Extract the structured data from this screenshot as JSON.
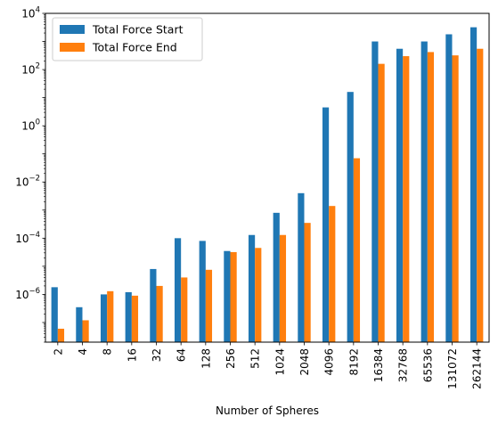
{
  "chart_data": {
    "type": "bar",
    "title": "",
    "xlabel": "Number of Spheres",
    "ylabel": "",
    "yscale": "log",
    "ylim": [
      2e-08,
      10000
    ],
    "grid": false,
    "legend_position": "top-left",
    "categories": [
      "2",
      "4",
      "8",
      "16",
      "32",
      "64",
      "128",
      "256",
      "512",
      "1024",
      "2048",
      "4096",
      "8192",
      "16384",
      "32768",
      "65536",
      "131072",
      "262144"
    ],
    "series": [
      {
        "name": "Total Force Start",
        "color": "#1f77b4",
        "values": [
          1.8e-06,
          3.5e-07,
          1e-06,
          1.2e-06,
          8e-06,
          0.0001,
          8e-05,
          3.5e-05,
          0.00013,
          0.0008,
          0.004,
          4.5,
          16,
          1000,
          550,
          1000,
          1800,
          3200
        ]
      },
      {
        "name": "Total Force End",
        "color": "#ff7f0e",
        "values": [
          6e-08,
          1.2e-07,
          1.3e-06,
          9e-07,
          2e-06,
          4e-06,
          7.5e-06,
          3.2e-05,
          4.5e-05,
          0.00013,
          0.00035,
          0.0014,
          0.07,
          160,
          300,
          420,
          320,
          550
        ]
      }
    ],
    "y_ticks": [
      {
        "exp": -6,
        "label": "10",
        "sup": "−6"
      },
      {
        "exp": -4,
        "label": "10",
        "sup": "−4"
      },
      {
        "exp": -2,
        "label": "10",
        "sup": "−2"
      },
      {
        "exp": 0,
        "label": "10",
        "sup": "0"
      },
      {
        "exp": 2,
        "label": "10",
        "sup": "2"
      },
      {
        "exp": 4,
        "label": "10",
        "sup": "4"
      }
    ]
  }
}
